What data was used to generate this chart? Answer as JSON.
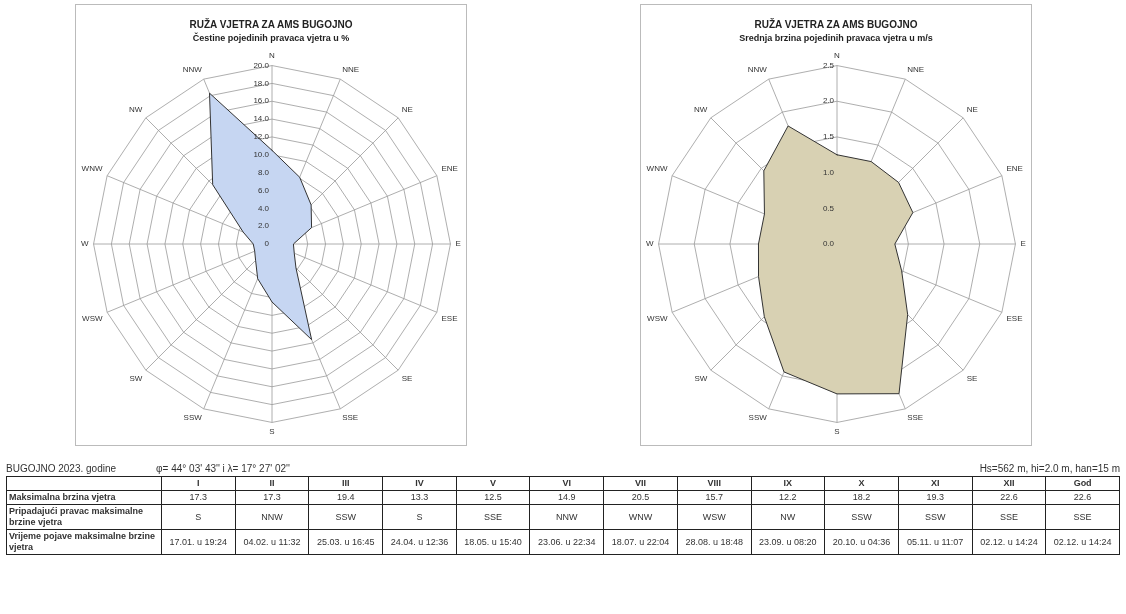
{
  "chart_data": [
    {
      "type": "radar",
      "title": "RUŽA VJETRA ZA AMS BUGOJNO",
      "subtitle": "Čestine pojedinih pravaca vjetra u %",
      "categories": [
        "N",
        "NNE",
        "NE",
        "ENE",
        "E",
        "ESE",
        "SE",
        "SSE",
        "S",
        "SSW",
        "SW",
        "WSW",
        "W",
        "WNW",
        "NW",
        "NNW"
      ],
      "series": [
        {
          "color": "#c6d6f2",
          "values": [
            10.5,
            8.1,
            6.2,
            4.8,
            2.4,
            2.7,
            3.8,
            11.6,
            6.5,
            4.2,
            2.6,
            2.1,
            2.1,
            3.5,
            9.4,
            18.3
          ]
        }
      ],
      "ylim": [
        0,
        20
      ],
      "yticks": [
        {
          "value": 0,
          "label": "0"
        },
        {
          "value": 2,
          "label": "2.0"
        },
        {
          "value": 4,
          "label": "4.0"
        },
        {
          "value": 6,
          "label": "6.0"
        },
        {
          "value": 8,
          "label": "8.0"
        },
        {
          "value": 10,
          "label": "10.0"
        },
        {
          "value": 12,
          "label": "12.0"
        },
        {
          "value": 14,
          "label": "14.0"
        },
        {
          "value": 16,
          "label": "16.0"
        },
        {
          "value": 18,
          "label": "18.0"
        },
        {
          "value": 20,
          "label": "20.0"
        }
      ],
      "grid": true,
      "legend": false,
      "marker": "none"
    },
    {
      "type": "radar",
      "title": "RUŽA VJETRA ZA AMS BUGOJNO",
      "subtitle": "Srednja brzina pojedinih pravaca vjetra u m/s",
      "categories": [
        "N",
        "NNE",
        "NE",
        "ENE",
        "E",
        "ESE",
        "SE",
        "SSE",
        "S",
        "SSW",
        "SW",
        "WSW",
        "W",
        "WNW",
        "NW",
        "NNW"
      ],
      "series": [
        {
          "color": "#d8d1b3",
          "values": [
            1.25,
            1.25,
            1.22,
            1.15,
            0.81,
            0.98,
            1.4,
            2.27,
            2.1,
            1.94,
            1.44,
            1.19,
            1.1,
            1.1,
            1.45,
            1.79
          ]
        }
      ],
      "ylim": [
        0,
        2.5
      ],
      "yticks": [
        {
          "value": 0,
          "label": "0.0"
        },
        {
          "value": 0.5,
          "label": "0.5"
        },
        {
          "value": 1,
          "label": "1.0"
        },
        {
          "value": 1.5,
          "label": "1.5"
        },
        {
          "value": 2,
          "label": "2.0"
        },
        {
          "value": 2.5,
          "label": "2.5"
        }
      ],
      "grid": true,
      "legend": false,
      "marker": "none"
    },
    {
      "type": "other",
      "title": "BUGOJNO 2023. godine",
      "annotations": [
        "φ= 44° 03' 43'' i λ= 17° 27' 02''",
        "Hs=562 m, hi=2.0 m,  han=15 m"
      ],
      "categories": [
        "I",
        "II",
        "III",
        "IV",
        "V",
        "VI",
        "VII",
        "VIII",
        "IX",
        "X",
        "XI",
        "XII",
        "God"
      ],
      "y_categories": [
        "Maksimalna brzina vjetra",
        "Pripadajući pravac maksimalne brzine vjetra",
        "Vrijeme pojave maksimalne brzine vjetra"
      ],
      "cell_labels": [
        [
          "17.3",
          "17.3",
          "19.4",
          "13.3",
          "12.5",
          "14.9",
          "20.5",
          "15.7",
          "12.2",
          "18.2",
          "19.3",
          "22.6",
          "22.6"
        ],
        [
          "S",
          "NNW",
          "SSW",
          "S",
          "SSE",
          "NNW",
          "WNW",
          "WSW",
          "NW",
          "SSW",
          "SSW",
          "SSE",
          "SSE"
        ],
        [
          "17.01. u 19:24",
          "04.02. u 11:32",
          "25.03. u 16:45",
          "24.04. u 12:36",
          "18.05. u 15:40",
          "23.06. u 22:34",
          "18.07. u 22:04",
          "28.08. u 18:48",
          "23.09. u 08:20",
          "20.10. u 04:36",
          "05.11. u 11:07",
          "02.12. u 14:24",
          "02.12. u 14:24"
        ]
      ]
    }
  ]
}
